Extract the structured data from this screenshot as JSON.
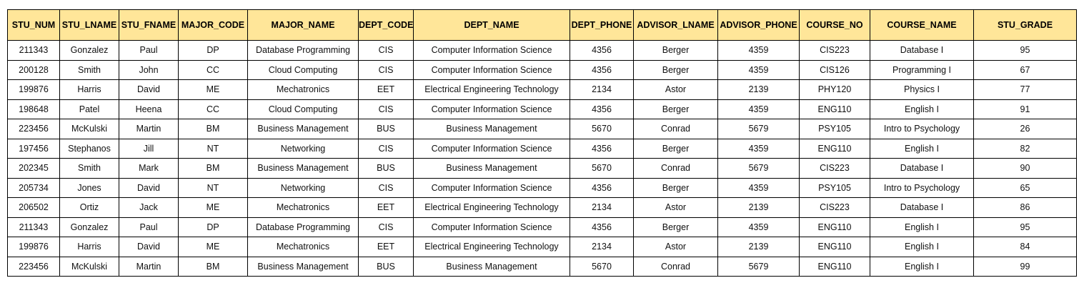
{
  "table": {
    "headers": [
      "STU_NUM",
      "STU_LNAME",
      "STU_FNAME",
      "MAJOR_CODE",
      "MAJOR_NAME",
      "DEPT_CODE",
      "DEPT_NAME",
      "DEPT_PHONE",
      "ADVISOR_LNAME",
      "ADVISOR_PHONE",
      "COURSE_NO",
      "COURSE_NAME",
      "STU_GRADE"
    ],
    "rows": [
      [
        "211343",
        "Gonzalez",
        "Paul",
        "DP",
        "Database Programming",
        "CIS",
        "Computer Information Science",
        "4356",
        "Berger",
        "4359",
        "CIS223",
        "Database I",
        "95"
      ],
      [
        "200128",
        "Smith",
        "John",
        "CC",
        "Cloud Computing",
        "CIS",
        "Computer Information Science",
        "4356",
        "Berger",
        "4359",
        "CIS126",
        "Programming I",
        "67"
      ],
      [
        "199876",
        "Harris",
        "David",
        "ME",
        "Mechatronics",
        "EET",
        "Electrical Engineering Technology",
        "2134",
        "Astor",
        "2139",
        "PHY120",
        "Physics I",
        "77"
      ],
      [
        "198648",
        "Patel",
        "Heena",
        "CC",
        "Cloud Computing",
        "CIS",
        "Computer Information Science",
        "4356",
        "Berger",
        "4359",
        "ENG110",
        "English I",
        "91"
      ],
      [
        "223456",
        "McKulski",
        "Martin",
        "BM",
        "Business Management",
        "BUS",
        "Business Management",
        "5670",
        "Conrad",
        "5679",
        "PSY105",
        "Intro to Psychology",
        "26"
      ],
      [
        "197456",
        "Stephanos",
        "Jill",
        "NT",
        "Networking",
        "CIS",
        "Computer Information Science",
        "4356",
        "Berger",
        "4359",
        "ENG110",
        "English I",
        "82"
      ],
      [
        "202345",
        "Smith",
        "Mark",
        "BM",
        "Business Management",
        "BUS",
        "Business Management",
        "5670",
        "Conrad",
        "5679",
        "CIS223",
        "Database I",
        "90"
      ],
      [
        "205734",
        "Jones",
        "David",
        "NT",
        "Networking",
        "CIS",
        "Computer Information Science",
        "4356",
        "Berger",
        "4359",
        "PSY105",
        "Intro to Psychology",
        "65"
      ],
      [
        "206502",
        "Ortiz",
        "Jack",
        "ME",
        "Mechatronics",
        "EET",
        "Electrical Engineering Technology",
        "2134",
        "Astor",
        "2139",
        "CIS223",
        "Database I",
        "86"
      ],
      [
        "211343",
        "Gonzalez",
        "Paul",
        "DP",
        "Database Programming",
        "CIS",
        "Computer Information Science",
        "4356",
        "Berger",
        "4359",
        "ENG110",
        "English I",
        "95"
      ],
      [
        "199876",
        "Harris",
        "David",
        "ME",
        "Mechatronics",
        "EET",
        "Electrical Engineering Technology",
        "2134",
        "Astor",
        "2139",
        "ENG110",
        "English I",
        "84"
      ],
      [
        "223456",
        "McKulski",
        "Martin",
        "BM",
        "Business Management",
        "BUS",
        "Business Management",
        "5670",
        "Conrad",
        "5679",
        "ENG110",
        "English I",
        "99"
      ]
    ]
  }
}
